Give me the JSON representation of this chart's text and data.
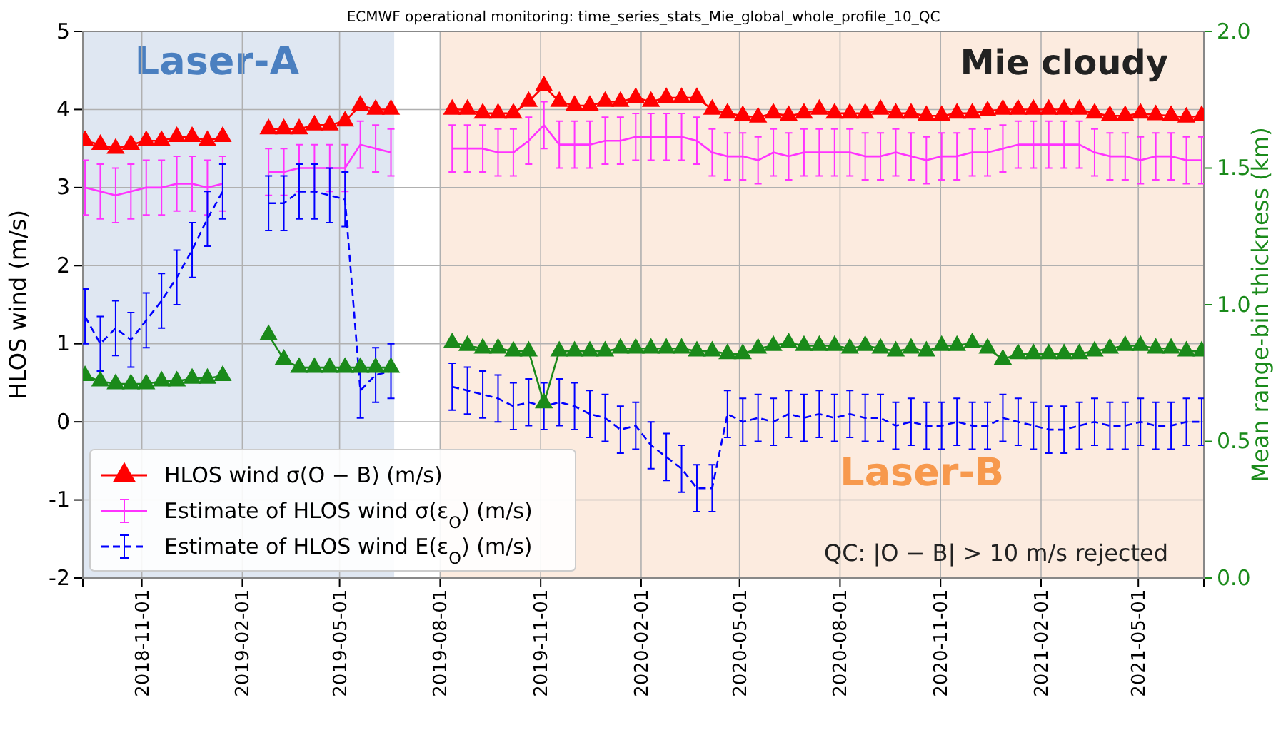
{
  "chart_data": {
    "type": "line",
    "title": "ECMWF operational monitoring: time_series_stats_Mie_global_whole_profile_10_QC",
    "ylabel": "HLOS wind (m/s)",
    "y2label": "Mean range-bin thickness (km)",
    "x": [
      "2018-09-10",
      "2018-09-24",
      "2018-10-08",
      "2018-10-22",
      "2018-11-05",
      "2018-11-19",
      "2018-12-03",
      "2018-12-17",
      "2018-12-31",
      "2019-01-14",
      "2019-01-28",
      "2019-02-11",
      "2019-02-25",
      "2019-03-11",
      "2019-03-25",
      "2019-04-08",
      "2019-04-22",
      "2019-05-06",
      "2019-05-20",
      "2019-06-03",
      "2019-06-17",
      "2019-07-01",
      "2019-07-15",
      "2019-07-29",
      "2019-08-12",
      "2019-08-26",
      "2019-09-09",
      "2019-09-23",
      "2019-10-07",
      "2019-10-21",
      "2019-11-04",
      "2019-11-18",
      "2019-12-02",
      "2019-12-16",
      "2019-12-30",
      "2020-01-13",
      "2020-01-27",
      "2020-02-10",
      "2020-02-24",
      "2020-03-09",
      "2020-03-23",
      "2020-04-06",
      "2020-04-20",
      "2020-05-04",
      "2020-05-18",
      "2020-06-01",
      "2020-06-15",
      "2020-06-29",
      "2020-07-13",
      "2020-07-27",
      "2020-08-10",
      "2020-08-24",
      "2020-09-07",
      "2020-09-21",
      "2020-10-05",
      "2020-10-19",
      "2020-11-02",
      "2020-11-16",
      "2020-11-30",
      "2020-12-14",
      "2020-12-28",
      "2021-01-11",
      "2021-01-25",
      "2021-02-08",
      "2021-02-22",
      "2021-03-08",
      "2021-03-22",
      "2021-04-05",
      "2021-04-19",
      "2021-05-03",
      "2021-05-17",
      "2021-05-31",
      "2021-06-14",
      "2021-06-28"
    ],
    "series": [
      {
        "name": "HLOS wind σ(O − B) (m/s)",
        "color": "#ff0000",
        "marker": "triangle",
        "line_style": "solid",
        "values": [
          3.6,
          3.55,
          3.5,
          3.55,
          3.6,
          3.6,
          3.65,
          3.65,
          3.6,
          3.65,
          null,
          null,
          3.75,
          3.75,
          3.75,
          3.8,
          3.8,
          3.85,
          4.05,
          4.0,
          4.0,
          null,
          null,
          null,
          4.0,
          4.0,
          3.95,
          3.95,
          3.95,
          4.1,
          4.3,
          4.1,
          4.05,
          4.05,
          4.1,
          4.1,
          4.15,
          4.1,
          4.15,
          4.15,
          4.15,
          4.0,
          3.95,
          3.92,
          3.9,
          3.95,
          3.92,
          3.95,
          4.0,
          3.95,
          3.95,
          3.95,
          4.0,
          3.95,
          3.95,
          3.92,
          3.92,
          3.95,
          3.95,
          3.98,
          4.0,
          4.0,
          4.0,
          4.0,
          4.0,
          4.0,
          3.95,
          3.92,
          3.92,
          3.95,
          3.93,
          3.92,
          3.9,
          3.92
        ]
      },
      {
        "name": "Estimate of HLOS wind σ(ε$_{O}$) (m/s)",
        "color": "#ff33ff",
        "marker": "none",
        "line_style": "solid",
        "values": [
          3.0,
          2.95,
          2.9,
          2.95,
          3.0,
          3.0,
          3.05,
          3.05,
          3.0,
          3.05,
          null,
          null,
          3.2,
          3.2,
          3.25,
          3.25,
          3.25,
          3.25,
          3.55,
          3.5,
          3.45,
          null,
          null,
          null,
          3.5,
          3.5,
          3.5,
          3.45,
          3.45,
          3.6,
          3.8,
          3.55,
          3.55,
          3.55,
          3.6,
          3.6,
          3.65,
          3.65,
          3.65,
          3.65,
          3.6,
          3.45,
          3.4,
          3.4,
          3.35,
          3.45,
          3.4,
          3.45,
          3.45,
          3.45,
          3.45,
          3.4,
          3.4,
          3.45,
          3.4,
          3.35,
          3.4,
          3.4,
          3.45,
          3.45,
          3.5,
          3.55,
          3.55,
          3.55,
          3.55,
          3.55,
          3.45,
          3.4,
          3.4,
          3.35,
          3.4,
          3.4,
          3.35,
          3.35
        ],
        "errors": [
          0.35,
          0.35,
          0.35,
          0.35,
          0.35,
          0.35,
          0.35,
          0.35,
          0.35,
          0.35,
          null,
          null,
          0.3,
          0.3,
          0.3,
          0.3,
          0.3,
          0.3,
          0.3,
          0.3,
          0.3,
          null,
          null,
          null,
          0.3,
          0.3,
          0.3,
          0.3,
          0.3,
          0.3,
          0.3,
          0.3,
          0.3,
          0.3,
          0.3,
          0.3,
          0.3,
          0.3,
          0.3,
          0.3,
          0.3,
          0.3,
          0.3,
          0.3,
          0.3,
          0.3,
          0.3,
          0.3,
          0.3,
          0.3,
          0.3,
          0.3,
          0.3,
          0.3,
          0.3,
          0.3,
          0.3,
          0.3,
          0.3,
          0.3,
          0.3,
          0.3,
          0.3,
          0.3,
          0.3,
          0.3,
          0.3,
          0.3,
          0.3,
          0.3,
          0.3,
          0.3,
          0.3,
          0.3
        ]
      },
      {
        "name": "Estimate of HLOS wind E(ε$_{O}$) (m/s)",
        "color": "#0000ff",
        "marker": "none",
        "line_style": "dashed",
        "values": [
          1.35,
          1.0,
          1.2,
          1.05,
          1.3,
          1.55,
          1.85,
          2.2,
          2.6,
          2.95,
          null,
          null,
          2.8,
          2.8,
          2.95,
          2.95,
          2.9,
          2.85,
          0.4,
          0.6,
          0.65,
          null,
          null,
          null,
          0.45,
          0.4,
          0.35,
          0.3,
          0.2,
          0.25,
          0.2,
          0.25,
          0.2,
          0.1,
          0.05,
          -0.1,
          -0.05,
          -0.3,
          -0.45,
          -0.6,
          -0.85,
          -0.85,
          0.1,
          0.0,
          0.05,
          0.0,
          0.1,
          0.05,
          0.1,
          0.05,
          0.1,
          0.05,
          0.05,
          -0.05,
          0.0,
          -0.05,
          -0.05,
          0.0,
          -0.05,
          -0.05,
          0.05,
          0.0,
          -0.05,
          -0.1,
          -0.1,
          -0.05,
          0.0,
          -0.05,
          -0.05,
          0.0,
          -0.05,
          -0.05,
          0.0,
          0.0
        ],
        "errors": [
          0.35,
          0.35,
          0.35,
          0.35,
          0.35,
          0.35,
          0.35,
          0.35,
          0.35,
          0.35,
          null,
          null,
          0.35,
          0.35,
          0.35,
          0.35,
          0.35,
          0.35,
          0.35,
          0.35,
          0.35,
          null,
          null,
          null,
          0.3,
          0.3,
          0.3,
          0.3,
          0.3,
          0.3,
          0.3,
          0.3,
          0.3,
          0.3,
          0.3,
          0.3,
          0.3,
          0.3,
          0.3,
          0.3,
          0.3,
          0.3,
          0.3,
          0.3,
          0.3,
          0.3,
          0.3,
          0.3,
          0.3,
          0.3,
          0.3,
          0.3,
          0.3,
          0.3,
          0.3,
          0.3,
          0.3,
          0.3,
          0.3,
          0.3,
          0.3,
          0.3,
          0.3,
          0.3,
          0.3,
          0.3,
          0.3,
          0.3,
          0.3,
          0.3,
          0.3,
          0.3,
          0.3,
          0.3
        ]
      },
      {
        "color": "#1a8a1a",
        "marker": "triangle",
        "line_style": "solid",
        "axis": "y2",
        "values": [
          0.74,
          0.72,
          0.71,
          0.71,
          0.71,
          0.72,
          0.72,
          0.73,
          0.73,
          0.74,
          null,
          null,
          0.89,
          0.8,
          0.77,
          0.77,
          0.77,
          0.77,
          0.77,
          0.77,
          0.77,
          null,
          null,
          null,
          0.86,
          0.85,
          0.84,
          0.84,
          0.83,
          0.83,
          0.64,
          0.83,
          0.83,
          0.83,
          0.83,
          0.84,
          0.84,
          0.84,
          0.84,
          0.84,
          0.83,
          0.83,
          0.82,
          0.82,
          0.84,
          0.85,
          0.86,
          0.85,
          0.85,
          0.85,
          0.84,
          0.85,
          0.84,
          0.83,
          0.84,
          0.83,
          0.85,
          0.85,
          0.86,
          0.84,
          0.8,
          0.82,
          0.82,
          0.82,
          0.82,
          0.82,
          0.83,
          0.84,
          0.85,
          0.85,
          0.84,
          0.84,
          0.83,
          0.83
        ]
      }
    ],
    "xlim": [
      "2018-09-08",
      "2021-06-30"
    ],
    "xticks": [
      "2018-11-01",
      "2019-02-01",
      "2019-05-01",
      "2019-08-01",
      "2019-11-01",
      "2020-02-01",
      "2020-05-01",
      "2020-08-01",
      "2020-11-01",
      "2021-02-01",
      "2021-05-01"
    ],
    "ylim": [
      -2,
      5
    ],
    "yticks": [
      -2,
      -1,
      0,
      1,
      2,
      3,
      4,
      5
    ],
    "y2lim": [
      0,
      2
    ],
    "y2ticks": [
      {
        "value": 0,
        "label": "0.0"
      },
      {
        "value": 0.5,
        "label": "0.5"
      },
      {
        "value": 1,
        "label": "1.0"
      },
      {
        "value": 1.5,
        "label": "1.5"
      },
      {
        "value": 2,
        "label": "2.0"
      }
    ],
    "bands": [
      {
        "axis": "x",
        "from": "2018-09-08",
        "to": "2019-06-20",
        "label": "Laser-A",
        "color": "#dfe7f2"
      },
      {
        "axis": "x",
        "from": "2019-08-01",
        "to": "2021-06-30",
        "label": "Laser-B",
        "color": "#fcebdf"
      }
    ],
    "annotations": [
      "Mie cloudy",
      "QC: |O − B| > 10 m/s rejected"
    ],
    "grid": true,
    "legend": "bottom left"
  }
}
